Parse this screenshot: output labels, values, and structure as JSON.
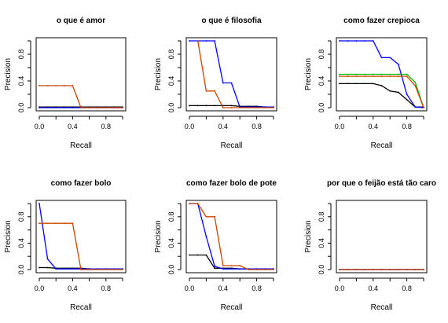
{
  "chart_data": [
    {
      "type": "line",
      "title": "o que é amor",
      "xlabel": "Recall",
      "ylabel": "Precision",
      "xlim": [
        0,
        1
      ],
      "ylim": [
        0,
        1
      ],
      "xticks": [
        "0.0",
        "0.4",
        "0.8"
      ],
      "yticks": [
        "0.0",
        "0.4",
        "0.8"
      ],
      "series": [
        {
          "color": "#000000",
          "points": [
            [
              0,
              0.01
            ],
            [
              0.1,
              0.01
            ],
            [
              0.2,
              0.01
            ],
            [
              0.3,
              0.01
            ],
            [
              0.4,
              0.01
            ],
            [
              0.5,
              0.01
            ],
            [
              0.6,
              0.01
            ],
            [
              0.7,
              0.01
            ],
            [
              0.8,
              0.01
            ],
            [
              0.9,
              0.01
            ],
            [
              1,
              0.01
            ]
          ]
        },
        {
          "color": "#0000ff",
          "points": [
            [
              0,
              0
            ],
            [
              0.1,
              0
            ],
            [
              0.2,
              0
            ],
            [
              0.3,
              0
            ],
            [
              0.4,
              0
            ],
            [
              0.5,
              0
            ],
            [
              0.6,
              0
            ],
            [
              0.7,
              0
            ],
            [
              0.8,
              0
            ],
            [
              0.9,
              0
            ],
            [
              1,
              0
            ]
          ]
        },
        {
          "color": "#cc4400",
          "points": [
            [
              0,
              0.33
            ],
            [
              0.1,
              0.33
            ],
            [
              0.2,
              0.33
            ],
            [
              0.3,
              0.33
            ],
            [
              0.4,
              0.33
            ],
            [
              0.5,
              0
            ],
            [
              0.6,
              0
            ],
            [
              0.7,
              0
            ],
            [
              0.8,
              0
            ],
            [
              0.9,
              0
            ],
            [
              1,
              0
            ]
          ]
        }
      ]
    },
    {
      "type": "line",
      "title": "o que é filosofia",
      "xlabel": "Recall",
      "ylabel": "Precision",
      "xlim": [
        0,
        1
      ],
      "ylim": [
        0,
        1
      ],
      "xticks": [
        "0.0",
        "0.4",
        "0.8"
      ],
      "yticks": [
        "0.0",
        "0.4",
        "0.8"
      ],
      "series": [
        {
          "color": "#000000",
          "points": [
            [
              0,
              0.03
            ],
            [
              0.1,
              0.03
            ],
            [
              0.2,
              0.03
            ],
            [
              0.3,
              0.03
            ],
            [
              0.4,
              0.03
            ],
            [
              0.5,
              0.03
            ],
            [
              0.6,
              0.02
            ],
            [
              0.7,
              0.02
            ],
            [
              0.8,
              0.02
            ],
            [
              0.9,
              0.01
            ],
            [
              1,
              0.01
            ]
          ]
        },
        {
          "color": "#0000ff",
          "points": [
            [
              0,
              1
            ],
            [
              0.1,
              1
            ],
            [
              0.2,
              1
            ],
            [
              0.3,
              1
            ],
            [
              0.4,
              0.37
            ],
            [
              0.5,
              0.37
            ],
            [
              0.6,
              0.01
            ],
            [
              0.7,
              0.01
            ],
            [
              0.8,
              0.01
            ],
            [
              0.9,
              0.01
            ],
            [
              1,
              0.01
            ]
          ]
        },
        {
          "color": "#cc4400",
          "points": [
            [
              0.1,
              1
            ],
            [
              0.2,
              0.25
            ],
            [
              0.3,
              0.25
            ],
            [
              0.4,
              0
            ],
            [
              0.5,
              0
            ],
            [
              0.6,
              0
            ],
            [
              0.7,
              0
            ],
            [
              0.8,
              0
            ],
            [
              0.9,
              0
            ],
            [
              1,
              0
            ]
          ]
        }
      ]
    },
    {
      "type": "line",
      "title": "como fazer crepioca",
      "xlabel": "Recall",
      "ylabel": "Precision",
      "xlim": [
        0,
        1
      ],
      "ylim": [
        0,
        1
      ],
      "xticks": [
        "0.0",
        "0.4",
        "0.8"
      ],
      "yticks": [
        "0.0",
        "0.4",
        "0.8"
      ],
      "series": [
        {
          "color": "#000000",
          "points": [
            [
              0,
              0.36
            ],
            [
              0.1,
              0.36
            ],
            [
              0.2,
              0.36
            ],
            [
              0.3,
              0.36
            ],
            [
              0.4,
              0.36
            ],
            [
              0.5,
              0.33
            ],
            [
              0.6,
              0.25
            ],
            [
              0.7,
              0.23
            ],
            [
              0.8,
              0.12
            ],
            [
              0.9,
              0.01
            ],
            [
              1,
              0.01
            ]
          ]
        },
        {
          "color": "#00bb00",
          "points": [
            [
              0,
              0.5
            ],
            [
              0.1,
              0.5
            ],
            [
              0.2,
              0.5
            ],
            [
              0.3,
              0.5
            ],
            [
              0.4,
              0.5
            ],
            [
              0.5,
              0.5
            ],
            [
              0.6,
              0.5
            ],
            [
              0.7,
              0.5
            ],
            [
              0.8,
              0.5
            ],
            [
              0.9,
              0.38
            ],
            [
              1,
              0
            ]
          ]
        },
        {
          "color": "#0000ff",
          "points": [
            [
              0,
              1
            ],
            [
              0.1,
              1
            ],
            [
              0.2,
              1
            ],
            [
              0.3,
              1
            ],
            [
              0.4,
              1
            ],
            [
              0.5,
              0.75
            ],
            [
              0.6,
              0.75
            ],
            [
              0.7,
              0.65
            ],
            [
              0.8,
              0.2
            ],
            [
              0.9,
              0.01
            ],
            [
              1,
              0
            ]
          ]
        },
        {
          "color": "#cc4400",
          "points": [
            [
              0,
              0.47
            ],
            [
              0.1,
              0.47
            ],
            [
              0.2,
              0.47
            ],
            [
              0.3,
              0.47
            ],
            [
              0.4,
              0.47
            ],
            [
              0.5,
              0.47
            ],
            [
              0.6,
              0.47
            ],
            [
              0.7,
              0.47
            ],
            [
              0.8,
              0.47
            ],
            [
              0.9,
              0.33
            ],
            [
              1,
              0
            ]
          ]
        }
      ]
    },
    {
      "type": "line",
      "title": "como fazer bolo",
      "xlabel": "Recall",
      "ylabel": "Precision",
      "xlim": [
        0,
        1
      ],
      "ylim": [
        0,
        1
      ],
      "xticks": [
        "0.0",
        "0.4",
        "0.8"
      ],
      "yticks": [
        "0.0",
        "0.4",
        "0.8"
      ],
      "series": [
        {
          "color": "#000000",
          "points": [
            [
              0,
              0.03
            ],
            [
              0.1,
              0.03
            ],
            [
              0.2,
              0.02
            ],
            [
              0.3,
              0.02
            ],
            [
              0.4,
              0.02
            ],
            [
              0.5,
              0.02
            ],
            [
              0.6,
              0.01
            ],
            [
              0.7,
              0.01
            ],
            [
              0.8,
              0.01
            ],
            [
              0.9,
              0.01
            ],
            [
              1,
              0.01
            ]
          ]
        },
        {
          "color": "#0000ff",
          "points": [
            [
              0,
              1
            ],
            [
              0.1,
              0.16
            ],
            [
              0.2,
              0.01
            ],
            [
              0.3,
              0.01
            ],
            [
              0.4,
              0.01
            ],
            [
              0.5,
              0.01
            ],
            [
              0.6,
              0.01
            ],
            [
              0.7,
              0.01
            ],
            [
              0.8,
              0.01
            ],
            [
              0.9,
              0.01
            ],
            [
              1,
              0.01
            ]
          ]
        },
        {
          "color": "#cc4400",
          "points": [
            [
              0,
              0.7
            ],
            [
              0.1,
              0.7
            ],
            [
              0.2,
              0.7
            ],
            [
              0.3,
              0.7
            ],
            [
              0.4,
              0.7
            ],
            [
              0.5,
              0
            ],
            [
              0.6,
              0
            ],
            [
              0.7,
              0
            ],
            [
              0.8,
              0
            ],
            [
              0.9,
              0
            ],
            [
              1,
              0
            ]
          ]
        }
      ]
    },
    {
      "type": "line",
      "title": "como fazer bolo de pote",
      "xlabel": "Recall",
      "ylabel": "Precision",
      "xlim": [
        0,
        1
      ],
      "ylim": [
        0,
        1
      ],
      "xticks": [
        "0.0",
        "0.4",
        "0.8"
      ],
      "yticks": [
        "0.0",
        "0.4",
        "0.8"
      ],
      "series": [
        {
          "color": "#000000",
          "points": [
            [
              0,
              0.22
            ],
            [
              0.1,
              0.22
            ],
            [
              0.2,
              0.22
            ],
            [
              0.3,
              0.02
            ],
            [
              0.4,
              0.02
            ],
            [
              0.5,
              0.02
            ],
            [
              0.6,
              0.01
            ],
            [
              0.7,
              0.01
            ],
            [
              0.8,
              0.01
            ],
            [
              0.9,
              0.01
            ],
            [
              1,
              0.01
            ]
          ]
        },
        {
          "color": "#0000ff",
          "points": [
            [
              0,
              1
            ],
            [
              0.1,
              1
            ],
            [
              0.2,
              0.5
            ],
            [
              0.3,
              0.05
            ],
            [
              0.4,
              0.01
            ],
            [
              0.5,
              0.01
            ],
            [
              0.6,
              0.01
            ],
            [
              0.7,
              0.01
            ],
            [
              0.8,
              0.01
            ],
            [
              0.9,
              0.01
            ],
            [
              1,
              0.01
            ]
          ]
        },
        {
          "color": "#cc4400",
          "points": [
            [
              0,
              1
            ],
            [
              0.1,
              1
            ],
            [
              0.2,
              0.8
            ],
            [
              0.3,
              0.8
            ],
            [
              0.4,
              0.06
            ],
            [
              0.5,
              0.06
            ],
            [
              0.6,
              0.06
            ],
            [
              0.7,
              0
            ],
            [
              0.8,
              0
            ],
            [
              0.9,
              0
            ],
            [
              1,
              0
            ]
          ]
        }
      ]
    },
    {
      "type": "line",
      "title": "por que o feijão está tão caro",
      "xlabel": "Recall",
      "ylabel": "Precision",
      "xlim": [
        0,
        1
      ],
      "ylim": [
        0,
        1
      ],
      "xticks": [
        "0.0",
        "0.4",
        "0.8"
      ],
      "yticks": [
        "0.0",
        "0.4",
        "0.8"
      ],
      "series": [
        {
          "color": "#000000",
          "points": [
            [
              0,
              0
            ],
            [
              0.1,
              0
            ],
            [
              0.2,
              0
            ],
            [
              0.3,
              0
            ],
            [
              0.4,
              0
            ],
            [
              0.5,
              0
            ],
            [
              0.6,
              0
            ],
            [
              0.7,
              0
            ],
            [
              0.8,
              0
            ],
            [
              0.9,
              0
            ],
            [
              1,
              0
            ]
          ]
        },
        {
          "color": "#0000ff",
          "points": [
            [
              0,
              0
            ],
            [
              0.1,
              0
            ],
            [
              0.2,
              0
            ],
            [
              0.3,
              0
            ],
            [
              0.4,
              0
            ],
            [
              0.5,
              0
            ],
            [
              0.6,
              0
            ],
            [
              0.7,
              0
            ],
            [
              0.8,
              0
            ],
            [
              0.9,
              0
            ],
            [
              1,
              0
            ]
          ]
        },
        {
          "color": "#cc4400",
          "points": [
            [
              0,
              0
            ],
            [
              0.1,
              0
            ],
            [
              0.2,
              0
            ],
            [
              0.3,
              0
            ],
            [
              0.4,
              0
            ],
            [
              0.5,
              0
            ],
            [
              0.6,
              0
            ],
            [
              0.7,
              0
            ],
            [
              0.8,
              0
            ],
            [
              0.9,
              0
            ],
            [
              1,
              0
            ]
          ]
        }
      ]
    }
  ]
}
